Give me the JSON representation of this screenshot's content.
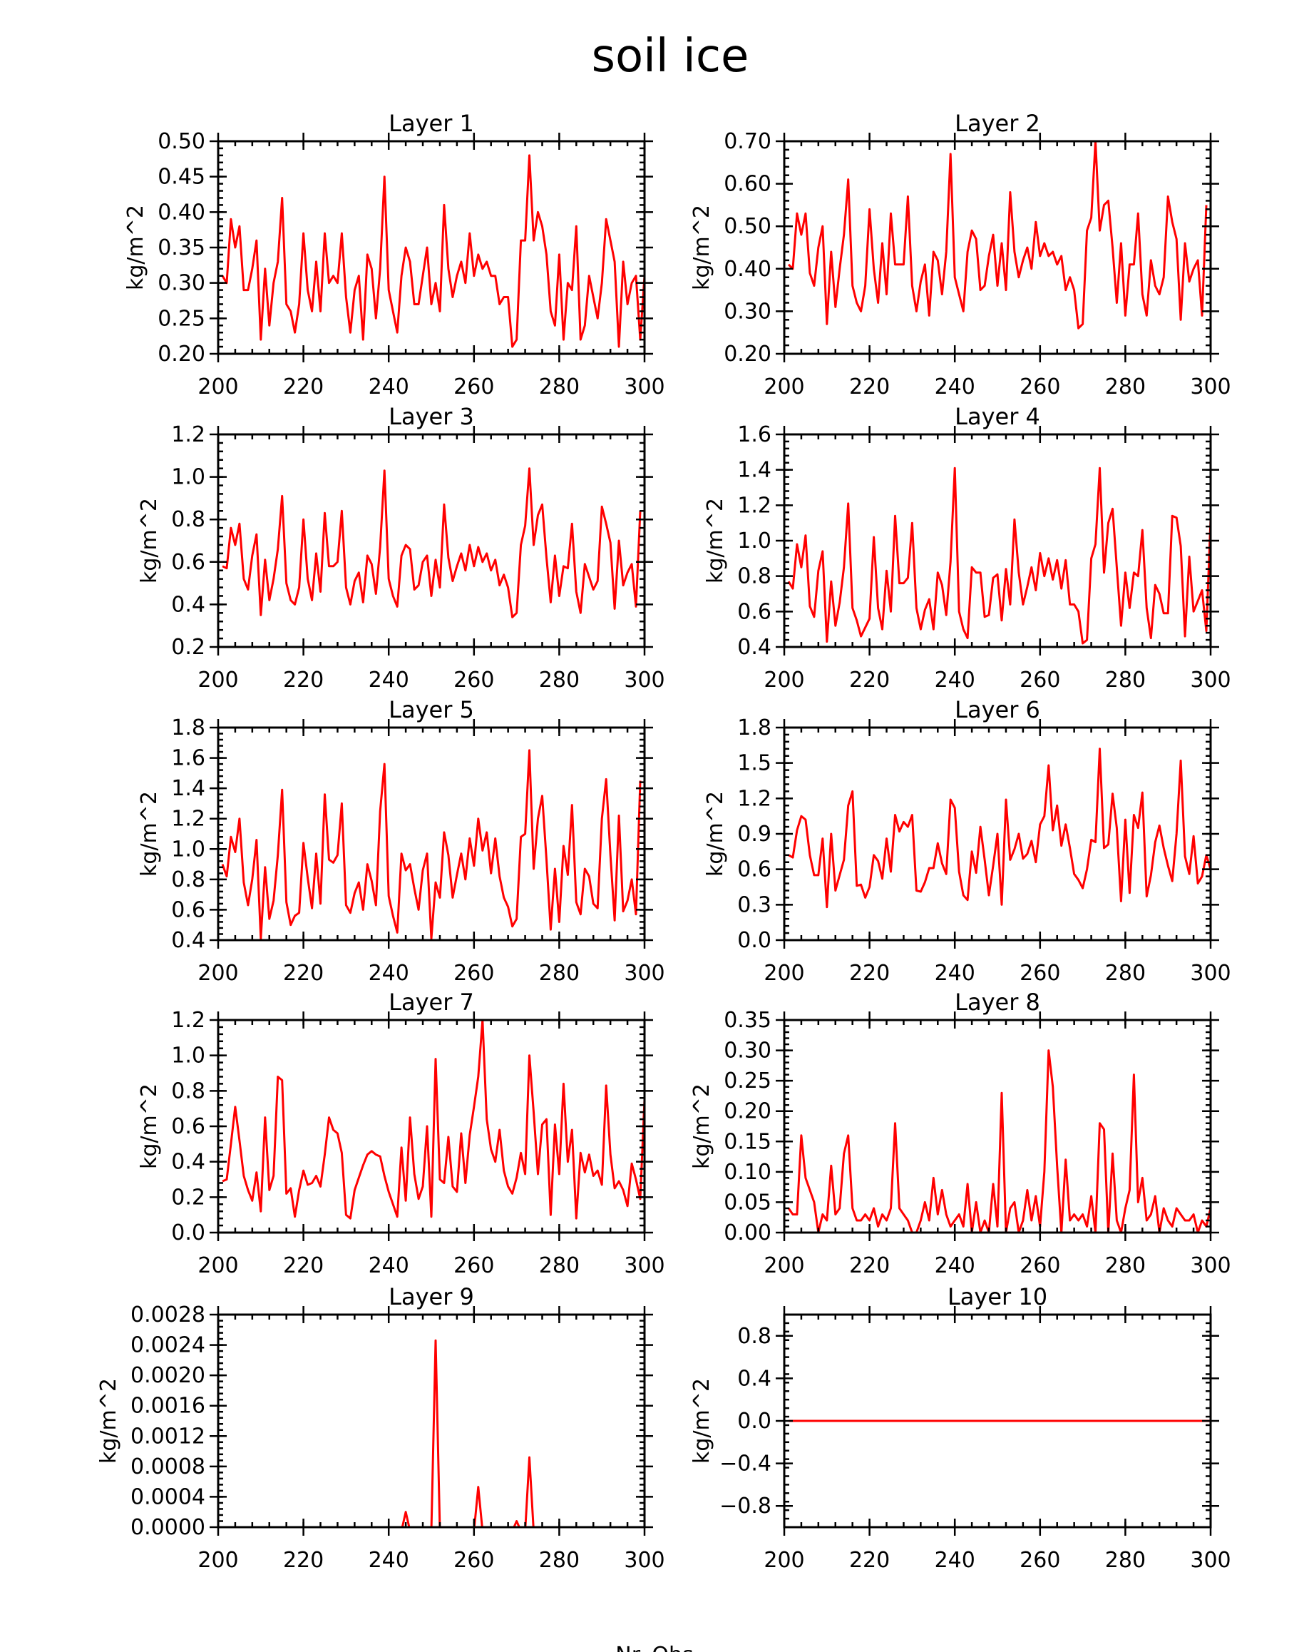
{
  "figure": {
    "title": "soil ice",
    "footer": "Nr. Obs"
  },
  "colors": {
    "series": "#ff0000",
    "axes": "#000000",
    "background": "#ffffff"
  },
  "chart_data": [
    {
      "type": "line",
      "title": "Layer 1",
      "xlabel": "",
      "ylabel": "kg/m^2",
      "xlim": [
        200,
        300
      ],
      "ylim": [
        0.2,
        0.5
      ],
      "yticks": [
        "0.20",
        "0.25",
        "0.30",
        "0.35",
        "0.40",
        "0.45",
        "0.50"
      ],
      "xticks": [
        "200",
        "220",
        "240",
        "260",
        "280",
        "300"
      ],
      "x_start": 201,
      "values": [
        0.31,
        0.3,
        0.39,
        0.35,
        0.38,
        0.29,
        0.29,
        0.32,
        0.36,
        0.22,
        0.32,
        0.24,
        0.3,
        0.33,
        0.42,
        0.27,
        0.26,
        0.23,
        0.27,
        0.37,
        0.29,
        0.26,
        0.33,
        0.26,
        0.37,
        0.3,
        0.31,
        0.3,
        0.37,
        0.28,
        0.23,
        0.29,
        0.31,
        0.22,
        0.34,
        0.32,
        0.25,
        0.32,
        0.45,
        0.29,
        0.26,
        0.23,
        0.31,
        0.35,
        0.33,
        0.27,
        0.27,
        0.31,
        0.35,
        0.27,
        0.3,
        0.26,
        0.41,
        0.32,
        0.28,
        0.31,
        0.33,
        0.3,
        0.37,
        0.31,
        0.34,
        0.32,
        0.33,
        0.31,
        0.31,
        0.27,
        0.28,
        0.28,
        0.21,
        0.22,
        0.36,
        0.36,
        0.48,
        0.36,
        0.4,
        0.38,
        0.34,
        0.26,
        0.24,
        0.34,
        0.22,
        0.3,
        0.29,
        0.38,
        0.22,
        0.24,
        0.31,
        0.28,
        0.25,
        0.3,
        0.39,
        0.36,
        0.33,
        0.21,
        0.33,
        0.27,
        0.3,
        0.31,
        0.22,
        0.31
      ]
    },
    {
      "type": "line",
      "title": "Layer 2",
      "xlabel": "",
      "ylabel": "kg/m^2",
      "xlim": [
        200,
        300
      ],
      "ylim": [
        0.2,
        0.7
      ],
      "yticks": [
        "0.20",
        "0.30",
        "0.40",
        "0.50",
        "0.60",
        "0.70"
      ],
      "xticks": [
        "200",
        "220",
        "240",
        "260",
        "280",
        "300"
      ],
      "x_start": 201,
      "values": [
        0.41,
        0.4,
        0.53,
        0.48,
        0.53,
        0.39,
        0.36,
        0.45,
        0.5,
        0.27,
        0.44,
        0.31,
        0.4,
        0.48,
        0.61,
        0.36,
        0.32,
        0.3,
        0.36,
        0.54,
        0.4,
        0.32,
        0.46,
        0.34,
        0.53,
        0.41,
        0.41,
        0.41,
        0.57,
        0.36,
        0.3,
        0.37,
        0.41,
        0.29,
        0.44,
        0.42,
        0.34,
        0.44,
        0.67,
        0.38,
        0.34,
        0.3,
        0.44,
        0.49,
        0.47,
        0.35,
        0.36,
        0.43,
        0.48,
        0.36,
        0.46,
        0.35,
        0.58,
        0.44,
        0.38,
        0.42,
        0.45,
        0.4,
        0.51,
        0.43,
        0.46,
        0.43,
        0.44,
        0.41,
        0.43,
        0.35,
        0.38,
        0.35,
        0.26,
        0.27,
        0.49,
        0.52,
        0.7,
        0.49,
        0.55,
        0.56,
        0.45,
        0.32,
        0.46,
        0.29,
        0.41,
        0.41,
        0.53,
        0.34,
        0.29,
        0.42,
        0.36,
        0.34,
        0.38,
        0.57,
        0.51,
        0.47,
        0.28,
        0.46,
        0.37,
        0.4,
        0.42,
        0.29,
        0.55
      ]
    },
    {
      "type": "line",
      "title": "Layer 3",
      "xlabel": "",
      "ylabel": "kg/m^2",
      "xlim": [
        200,
        300
      ],
      "ylim": [
        0.2,
        1.2
      ],
      "yticks": [
        "0.2",
        "0.4",
        "0.6",
        "0.8",
        "1.0",
        "1.2"
      ],
      "xticks": [
        "200",
        "220",
        "240",
        "260",
        "280",
        "300"
      ],
      "x_start": 201,
      "values": [
        0.58,
        0.57,
        0.76,
        0.68,
        0.78,
        0.52,
        0.47,
        0.63,
        0.73,
        0.35,
        0.61,
        0.42,
        0.52,
        0.66,
        0.91,
        0.5,
        0.42,
        0.4,
        0.48,
        0.8,
        0.52,
        0.42,
        0.64,
        0.46,
        0.83,
        0.58,
        0.58,
        0.6,
        0.84,
        0.48,
        0.4,
        0.51,
        0.55,
        0.41,
        0.63,
        0.59,
        0.45,
        0.67,
        1.03,
        0.52,
        0.44,
        0.39,
        0.63,
        0.68,
        0.66,
        0.47,
        0.49,
        0.6,
        0.63,
        0.44,
        0.61,
        0.48,
        0.87,
        0.62,
        0.51,
        0.58,
        0.64,
        0.56,
        0.68,
        0.58,
        0.67,
        0.6,
        0.64,
        0.56,
        0.61,
        0.49,
        0.54,
        0.48,
        0.34,
        0.36,
        0.68,
        0.77,
        1.04,
        0.68,
        0.82,
        0.87,
        0.62,
        0.41,
        0.63,
        0.44,
        0.58,
        0.57,
        0.78,
        0.46,
        0.36,
        0.59,
        0.53,
        0.47,
        0.51,
        0.86,
        0.78,
        0.69,
        0.38,
        0.7,
        0.49,
        0.55,
        0.59,
        0.39,
        0.84
      ]
    },
    {
      "type": "line",
      "title": "Layer 4",
      "xlabel": "",
      "ylabel": "kg/m^2",
      "xlim": [
        200,
        300
      ],
      "ylim": [
        0.4,
        1.6
      ],
      "yticks": [
        "0.4",
        "0.6",
        "0.8",
        "1.0",
        "1.2",
        "1.4",
        "1.6"
      ],
      "xticks": [
        "200",
        "220",
        "240",
        "260",
        "280",
        "300"
      ],
      "x_start": 201,
      "values": [
        0.77,
        0.73,
        0.98,
        0.85,
        1.03,
        0.63,
        0.57,
        0.83,
        0.94,
        0.43,
        0.77,
        0.52,
        0.65,
        0.85,
        1.21,
        0.62,
        0.55,
        0.46,
        0.51,
        0.56,
        1.02,
        0.62,
        0.5,
        0.83,
        0.6,
        1.14,
        0.76,
        0.76,
        0.79,
        1.1,
        0.62,
        0.5,
        0.61,
        0.67,
        0.5,
        0.82,
        0.75,
        0.58,
        0.88,
        1.41,
        0.6,
        0.5,
        0.45,
        0.85,
        0.82,
        0.82,
        0.57,
        0.58,
        0.79,
        0.81,
        0.55,
        0.84,
        0.64,
        1.12,
        0.82,
        0.64,
        0.74,
        0.85,
        0.72,
        0.93,
        0.8,
        0.9,
        0.78,
        0.89,
        0.73,
        0.89,
        0.64,
        0.64,
        0.6,
        0.42,
        0.44,
        0.9,
        0.98,
        1.41,
        0.82,
        1.1,
        1.18,
        0.85,
        0.52,
        0.82,
        0.62,
        0.82,
        0.8,
        1.06,
        0.62,
        0.45,
        0.75,
        0.7,
        0.59,
        0.59,
        1.14,
        1.13,
        0.97,
        0.46,
        0.91,
        0.6,
        0.66,
        0.72,
        0.49,
        1.12
      ]
    },
    {
      "type": "line",
      "title": "Layer 5",
      "xlabel": "",
      "ylabel": "kg/m^2",
      "xlim": [
        200,
        300
      ],
      "ylim": [
        0.4,
        1.8
      ],
      "yticks": [
        "0.4",
        "0.6",
        "0.8",
        "1.0",
        "1.2",
        "1.4",
        "1.6",
        "1.8"
      ],
      "xticks": [
        "200",
        "220",
        "240",
        "260",
        "280",
        "300"
      ],
      "x_start": 201,
      "values": [
        0.9,
        0.82,
        1.08,
        0.98,
        1.2,
        0.78,
        0.63,
        0.8,
        1.06,
        0.41,
        0.88,
        0.54,
        0.66,
        0.96,
        1.39,
        0.65,
        0.5,
        0.56,
        0.58,
        1.04,
        0.81,
        0.61,
        0.97,
        0.64,
        1.36,
        0.93,
        0.91,
        0.96,
        1.3,
        0.63,
        0.58,
        0.71,
        0.78,
        0.6,
        0.9,
        0.79,
        0.63,
        1.25,
        1.56,
        0.69,
        0.56,
        0.45,
        0.97,
        0.86,
        0.9,
        0.74,
        0.6,
        0.86,
        0.97,
        0.41,
        0.78,
        0.68,
        1.11,
        0.96,
        0.68,
        0.83,
        0.97,
        0.8,
        1.07,
        0.89,
        1.2,
        0.99,
        1.11,
        0.84,
        1.07,
        0.82,
        0.68,
        0.62,
        0.49,
        0.54,
        1.08,
        1.1,
        1.65,
        0.87,
        1.2,
        1.35,
        0.93,
        0.47,
        0.87,
        0.52,
        1.02,
        0.83,
        1.29,
        0.65,
        0.57,
        0.87,
        0.82,
        0.64,
        0.61,
        1.2,
        1.46,
        0.96,
        0.53,
        1.22,
        0.59,
        0.66,
        0.8,
        0.57,
        1.45
      ]
    },
    {
      "type": "line",
      "title": "Layer 6",
      "xlabel": "",
      "ylabel": "kg/m^2",
      "xlim": [
        200,
        300
      ],
      "ylim": [
        0.0,
        1.8
      ],
      "yticks": [
        "0.0",
        "0.3",
        "0.6",
        "0.9",
        "1.2",
        "1.5",
        "1.8"
      ],
      "xticks": [
        "200",
        "220",
        "240",
        "260",
        "280",
        "300"
      ],
      "x_start": 201,
      "values": [
        0.72,
        0.7,
        0.93,
        1.05,
        1.02,
        0.72,
        0.55,
        0.55,
        0.86,
        0.28,
        0.9,
        0.42,
        0.55,
        0.68,
        1.14,
        1.26,
        0.46,
        0.47,
        0.36,
        0.45,
        0.72,
        0.67,
        0.52,
        0.86,
        0.58,
        1.06,
        0.92,
        1.0,
        0.96,
        1.06,
        0.42,
        0.41,
        0.49,
        0.61,
        0.61,
        0.82,
        0.65,
        0.56,
        1.19,
        1.12,
        0.58,
        0.38,
        0.34,
        0.75,
        0.57,
        0.96,
        0.68,
        0.38,
        0.63,
        0.9,
        0.3,
        1.19,
        0.68,
        0.77,
        0.9,
        0.69,
        0.73,
        0.84,
        0.66,
        0.98,
        1.05,
        1.48,
        0.93,
        1.14,
        0.8,
        0.98,
        0.78,
        0.56,
        0.51,
        0.44,
        0.6,
        0.85,
        0.83,
        1.62,
        0.78,
        0.81,
        1.24,
        0.95,
        0.33,
        1.02,
        0.4,
        1.06,
        0.95,
        1.25,
        0.37,
        0.55,
        0.83,
        0.97,
        0.78,
        0.63,
        0.5,
        0.9,
        1.52,
        0.71,
        0.56,
        0.88,
        0.48,
        0.54,
        0.72,
        0.6,
        1.37
      ]
    },
    {
      "type": "line",
      "title": "Layer 7",
      "xlabel": "",
      "ylabel": "kg/m^2",
      "xlim": [
        200,
        300
      ],
      "ylim": [
        0.0,
        1.2
      ],
      "yticks": [
        "0.0",
        "0.2",
        "0.4",
        "0.6",
        "0.8",
        "1.0",
        "1.2"
      ],
      "xticks": [
        "200",
        "220",
        "240",
        "260",
        "280",
        "300"
      ],
      "x_start": 201,
      "values": [
        0.29,
        0.3,
        0.5,
        0.71,
        0.52,
        0.32,
        0.24,
        0.18,
        0.34,
        0.12,
        0.65,
        0.24,
        0.32,
        0.88,
        0.86,
        0.22,
        0.25,
        0.09,
        0.24,
        0.35,
        0.27,
        0.28,
        0.32,
        0.26,
        0.44,
        0.65,
        0.58,
        0.56,
        0.45,
        0.1,
        0.08,
        0.24,
        0.31,
        0.38,
        0.44,
        0.46,
        0.44,
        0.43,
        0.32,
        0.23,
        0.16,
        0.09,
        0.48,
        0.18,
        0.65,
        0.33,
        0.19,
        0.26,
        0.6,
        0.09,
        0.98,
        0.3,
        0.28,
        0.54,
        0.26,
        0.23,
        0.56,
        0.28,
        0.55,
        0.71,
        0.88,
        1.2,
        0.64,
        0.47,
        0.4,
        0.58,
        0.35,
        0.26,
        0.22,
        0.31,
        0.45,
        0.33,
        1.0,
        0.68,
        0.33,
        0.61,
        0.64,
        0.1,
        0.61,
        0.33,
        0.84,
        0.4,
        0.58,
        0.08,
        0.45,
        0.34,
        0.44,
        0.32,
        0.35,
        0.27,
        0.83,
        0.44,
        0.25,
        0.29,
        0.24,
        0.15,
        0.39,
        0.3,
        0.19,
        0.75
      ]
    },
    {
      "type": "line",
      "title": "Layer 8",
      "xlabel": "",
      "ylabel": "kg/m^2",
      "xlim": [
        200,
        300
      ],
      "ylim": [
        0.0,
        0.35
      ],
      "yticks": [
        "0.00",
        "0.05",
        "0.10",
        "0.15",
        "0.20",
        "0.25",
        "0.30",
        "0.35"
      ],
      "xticks": [
        "200",
        "220",
        "240",
        "260",
        "280",
        "300"
      ],
      "x_start": 201,
      "values": [
        0.04,
        0.03,
        0.03,
        0.16,
        0.09,
        0.07,
        0.05,
        0.0,
        0.03,
        0.02,
        0.11,
        0.03,
        0.04,
        0.13,
        0.16,
        0.04,
        0.02,
        0.02,
        0.03,
        0.02,
        0.04,
        0.01,
        0.03,
        0.02,
        0.04,
        0.18,
        0.04,
        0.03,
        0.02,
        0.0,
        0.0,
        0.02,
        0.05,
        0.02,
        0.09,
        0.03,
        0.07,
        0.03,
        0.01,
        0.02,
        0.03,
        0.01,
        0.08,
        0.0,
        0.05,
        0.0,
        0.02,
        0.0,
        0.08,
        0.01,
        0.23,
        0.0,
        0.04,
        0.05,
        0.0,
        0.02,
        0.07,
        0.02,
        0.06,
        0.01,
        0.1,
        0.3,
        0.24,
        0.11,
        0.0,
        0.12,
        0.02,
        0.03,
        0.02,
        0.03,
        0.01,
        0.06,
        0.0,
        0.18,
        0.17,
        0.0,
        0.13,
        0.02,
        0.0,
        0.04,
        0.07,
        0.26,
        0.05,
        0.09,
        0.02,
        0.03,
        0.06,
        0.0,
        0.04,
        0.02,
        0.01,
        0.04,
        0.03,
        0.02,
        0.02,
        0.03,
        0.0,
        0.02,
        0.01,
        0.04,
        0.07
      ]
    },
    {
      "type": "line",
      "title": "Layer 9",
      "xlabel": "",
      "ylabel": "kg/m^2",
      "xlim": [
        200,
        300
      ],
      "ylim": [
        0.0,
        0.0028
      ],
      "yticks": [
        "0.0000",
        "0.0004",
        "0.0008",
        "0.0012",
        "0.0016",
        "0.0020",
        "0.0024",
        "0.0028"
      ],
      "xticks": [
        "200",
        "220",
        "240",
        "260",
        "280",
        "300"
      ],
      "x_start": 243,
      "values": [
        -5e-05,
        0.0002,
        -5e-05,
        -5e-05,
        -5e-05,
        -5e-05,
        -5e-05,
        -5e-05,
        0.00246,
        -5e-05,
        -5e-05,
        -5e-05,
        -5e-05,
        -5e-05,
        -5e-05,
        -5e-05,
        -5e-05,
        -5e-05,
        0.00053,
        -5e-05,
        -5e-05,
        -5e-05,
        -5e-05,
        -5e-05,
        -5e-05,
        -5e-05,
        -5e-05,
        8e-05,
        -5e-05,
        -5e-05,
        0.00092,
        -5e-05
      ]
    },
    {
      "type": "line",
      "title": "Layer 10",
      "xlabel": "",
      "ylabel": "kg/m^2",
      "xlim": [
        200,
        300
      ],
      "ylim": [
        -1.0,
        1.0
      ],
      "yticks": [
        "−0.8",
        "−0.4",
        "0.0",
        "0.4",
        "0.8"
      ],
      "ytick_values": [
        -0.8,
        -0.4,
        0.0,
        0.4,
        0.8
      ],
      "xticks": [
        "200",
        "220",
        "240",
        "260",
        "280",
        "300"
      ],
      "x_start": 201,
      "values": [
        0,
        0,
        0,
        0,
        0,
        0,
        0,
        0,
        0,
        0,
        0,
        0,
        0,
        0,
        0,
        0,
        0,
        0,
        0,
        0,
        0,
        0,
        0,
        0,
        0,
        0,
        0,
        0,
        0,
        0,
        0,
        0,
        0,
        0,
        0,
        0,
        0,
        0,
        0,
        0,
        0,
        0,
        0,
        0,
        0,
        0,
        0,
        0,
        0,
        0,
        0,
        0,
        0,
        0,
        0,
        0,
        0,
        0,
        0,
        0,
        0,
        0,
        0,
        0,
        0,
        0,
        0,
        0,
        0,
        0,
        0,
        0,
        0,
        0,
        0,
        0,
        0,
        0,
        0,
        0,
        0,
        0,
        0,
        0,
        0,
        0,
        0,
        0,
        0,
        0,
        0,
        0,
        0,
        0,
        0,
        0,
        0,
        0,
        0,
        0
      ]
    }
  ]
}
